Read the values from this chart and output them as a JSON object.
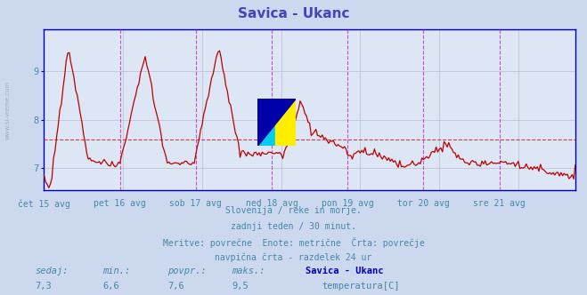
{
  "title": "Savica - Ukanc",
  "title_color": "#4444bb",
  "bg_color": "#ccd8ee",
  "plot_bg_color": "#dde6f4",
  "line_color": "#bb0000",
  "avg_line_color": "#cc2222",
  "avg_value": 7.6,
  "ylim": [
    6.55,
    9.85
  ],
  "yticks": [
    7,
    8,
    9
  ],
  "grid_color": "#bbbbcc",
  "vline_color": "#cc44cc",
  "border_color": "#0000bb",
  "text_info_color": "#4488aa",
  "stats_label_color": "#4488aa",
  "legend_name_color": "#0000bb",
  "legend_label": "temperatura[C]",
  "legend_color": "#cc0000",
  "sedaj": 7.3,
  "min_val": 6.6,
  "povpr": 7.6,
  "maks": 9.5,
  "x_labels": [
    "čet 15 avg",
    "pet 16 avg",
    "sob 17 avg",
    "ned 18 avg",
    "pon 19 avg",
    "tor 20 avg",
    "sre 21 avg"
  ],
  "n_points": 337,
  "subtitle_lines": [
    "Slovenija / reke in morje.",
    "zadnji teden / 30 minut.",
    "Meritve: povrečne  Enote: metrične  Črta: povrečje",
    "navpična črta - razdelek 24 ur"
  ]
}
